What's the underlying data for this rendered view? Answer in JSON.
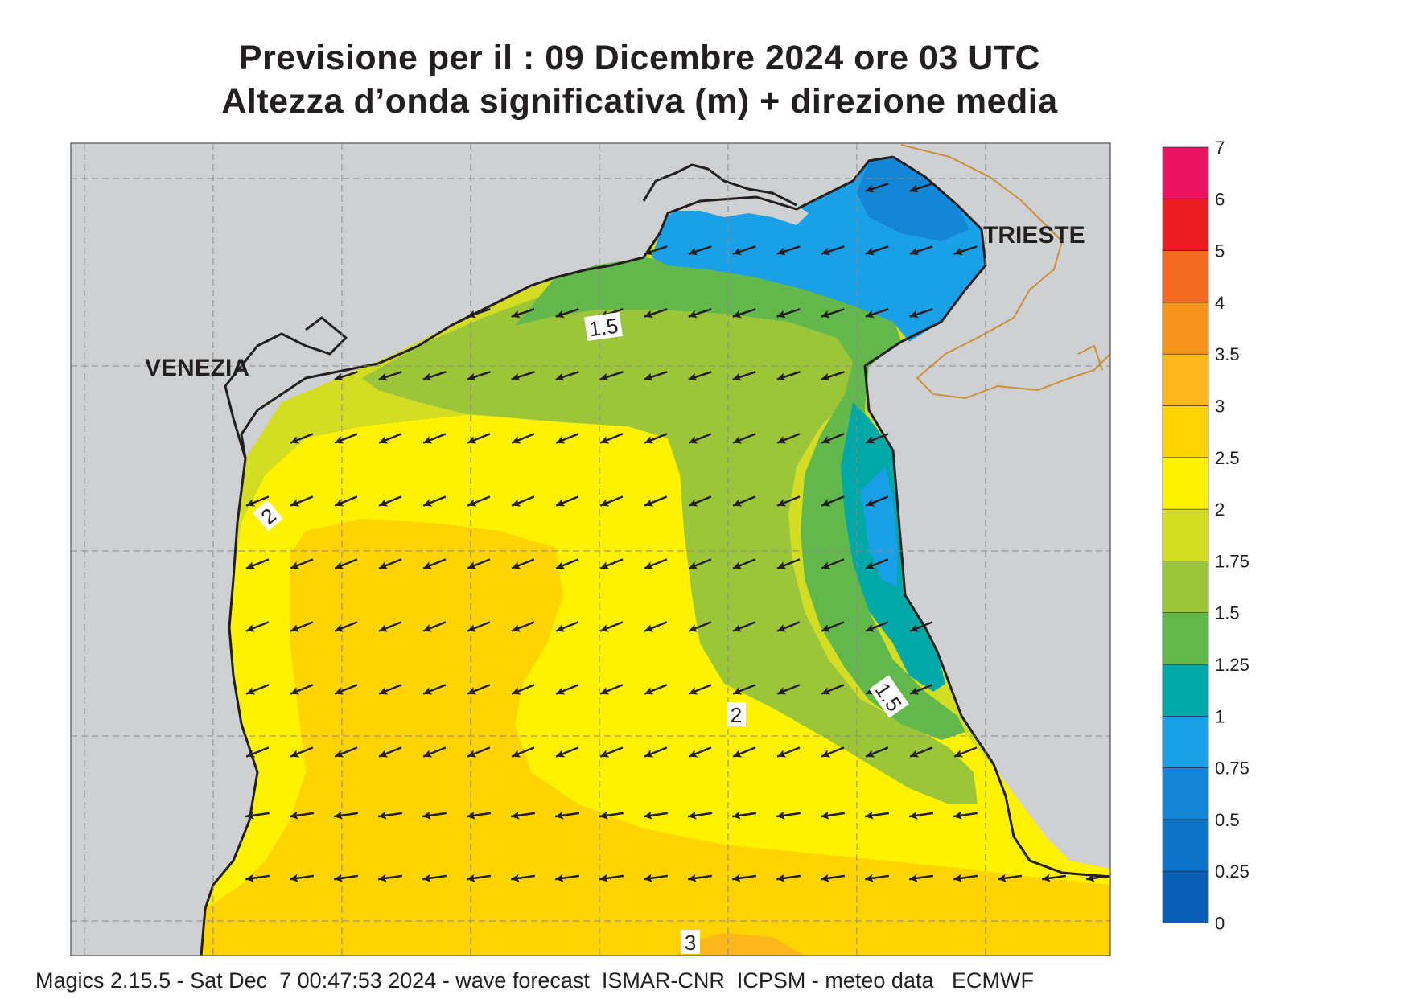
{
  "title": {
    "line1": "Previsione per il  :  09 Dicembre  2024   ore 03 UTC",
    "line2": "Altezza d’onda significativa (m) + direzione media"
  },
  "map_labels": {
    "venezia": "VENEZIA",
    "trieste": "TRIESTE"
  },
  "contour_labels": [
    "1.5",
    "2",
    "2",
    "1.5",
    "3"
  ],
  "colorbar": {
    "ticks": [
      "0",
      "0.25",
      "0.5",
      "0.75",
      "1",
      "1.25",
      "1.5",
      "1.75",
      "2",
      "2.5",
      "3",
      "3.5",
      "4",
      "5",
      "6",
      "7"
    ],
    "colors": [
      "#0a5fb4",
      "#0d73c6",
      "#1386d6",
      "#1aa0e6",
      "#00a8a8",
      "#63b84b",
      "#9dc53a",
      "#d3dd23",
      "#fff200",
      "#ffd400",
      "#fdb71b",
      "#f7941d",
      "#f26b21",
      "#ed1c24",
      "#ec1362"
    ]
  },
  "colors": {
    "land": "#cfd0d2",
    "coast": "#231f20",
    "border": "#c8913a",
    "grid": "#8a8a8a",
    "arrow": "#231f20"
  },
  "wave_direction": "towards west-south-west",
  "footer": "Magics 2.15.5 - Sat Dec  7 00:47:53 2024 - wave forecast  ISMAR-CNR  ICPSM - meteo data   ECMWF"
}
